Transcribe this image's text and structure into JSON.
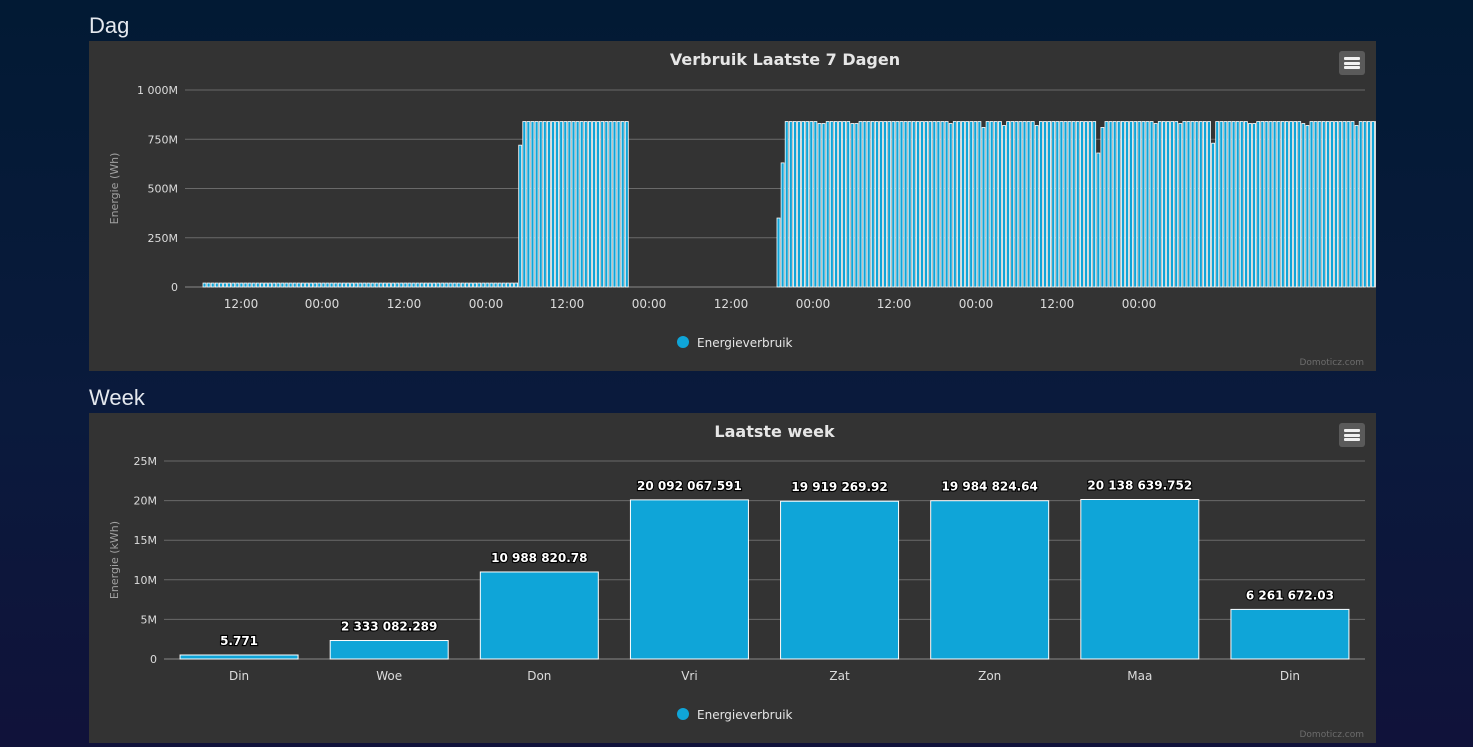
{
  "sections": {
    "day_title": "Dag",
    "week_title": "Week"
  },
  "credits": "Domoticz.com",
  "chart_data": [
    {
      "type": "bar",
      "title": "Verbruik Laatste 7 Dagen",
      "ylabel": "Energie (Wh)",
      "y_ticks": [
        "0",
        "250M",
        "500M",
        "750M",
        "1 000M"
      ],
      "ylim": [
        0,
        1000000000
      ],
      "x_tick_labels": [
        "12:00",
        "00:00",
        "12:00",
        "00:00",
        "12:00",
        "00:00",
        "12:00",
        "00:00",
        "12:00",
        "00:00",
        "12:00",
        "00:00"
      ],
      "x_unit": "hours",
      "series": [
        {
          "name": "Energieverbruik",
          "color": "#0fa5d8",
          "values": [
            20000000,
            20000000,
            20000000,
            20000000,
            20000000,
            20000000,
            20000000,
            20000000,
            20000000,
            20000000,
            20000000,
            20000000,
            20000000,
            20000000,
            20000000,
            20000000,
            20000000,
            20000000,
            20000000,
            20000000,
            20000000,
            20000000,
            20000000,
            20000000,
            20000000,
            20000000,
            20000000,
            20000000,
            20000000,
            20000000,
            20000000,
            20000000,
            20000000,
            20000000,
            20000000,
            20000000,
            20000000,
            20000000,
            20000000,
            20000000,
            20000000,
            20000000,
            20000000,
            20000000,
            20000000,
            20000000,
            20000000,
            20000000,
            20000000,
            20000000,
            20000000,
            20000000,
            20000000,
            20000000,
            20000000,
            20000000,
            20000000,
            20000000,
            20000000,
            20000000,
            20000000,
            20000000,
            20000000,
            20000000,
            20000000,
            20000000,
            20000000,
            20000000,
            20000000,
            20000000,
            20000000,
            20000000,
            20000000,
            20000000,
            20000000,
            20000000,
            20000000,
            720000000,
            840000000,
            840000000,
            840000000,
            840000000,
            840000000,
            840000000,
            840000000,
            840000000,
            840000000,
            840000000,
            840000000,
            840000000,
            840000000,
            840000000,
            840000000,
            840000000,
            840000000,
            840000000,
            840000000,
            840000000,
            840000000,
            840000000,
            840000000,
            840000000,
            840000000,
            840000000,
            null,
            null,
            null,
            null,
            null,
            null,
            null,
            null,
            null,
            null,
            null,
            null,
            null,
            null,
            null,
            null,
            null,
            null,
            null,
            null,
            null,
            null,
            null,
            null,
            null,
            null,
            null,
            null,
            null,
            null,
            null,
            null,
            null,
            null,
            null,
            null,
            350000000,
            630000000,
            840000000,
            840000000,
            840000000,
            840000000,
            840000000,
            840000000,
            840000000,
            840000000,
            830000000,
            830000000,
            840000000,
            840000000,
            840000000,
            840000000,
            840000000,
            840000000,
            830000000,
            830000000,
            840000000,
            840000000,
            840000000,
            840000000,
            840000000,
            840000000,
            840000000,
            840000000,
            840000000,
            840000000,
            840000000,
            840000000,
            840000000,
            840000000,
            840000000,
            840000000,
            840000000,
            840000000,
            840000000,
            840000000,
            840000000,
            840000000,
            830000000,
            840000000,
            840000000,
            840000000,
            840000000,
            840000000,
            840000000,
            840000000,
            810000000,
            840000000,
            840000000,
            840000000,
            840000000,
            820000000,
            840000000,
            840000000,
            840000000,
            840000000,
            840000000,
            840000000,
            840000000,
            820000000,
            840000000,
            840000000,
            840000000,
            840000000,
            840000000,
            840000000,
            840000000,
            840000000,
            840000000,
            840000000,
            840000000,
            840000000,
            840000000,
            840000000,
            680000000,
            810000000,
            840000000,
            840000000,
            840000000,
            840000000,
            840000000,
            840000000,
            840000000,
            840000000,
            840000000,
            840000000,
            840000000,
            840000000,
            830000000,
            840000000,
            840000000,
            840000000,
            840000000,
            840000000,
            830000000,
            840000000,
            840000000,
            840000000,
            840000000,
            840000000,
            840000000,
            840000000,
            730000000,
            840000000,
            840000000,
            840000000,
            840000000,
            840000000,
            840000000,
            840000000,
            840000000,
            830000000,
            830000000,
            840000000,
            840000000,
            840000000,
            840000000,
            840000000,
            840000000,
            840000000,
            840000000,
            840000000,
            840000000,
            840000000,
            830000000,
            820000000,
            840000000,
            840000000,
            840000000,
            840000000,
            840000000,
            840000000,
            840000000,
            840000000,
            840000000,
            840000000,
            840000000,
            820000000,
            840000000,
            840000000,
            840000000,
            840000000,
            840000000,
            840000000,
            840000000,
            840000000,
            840000000,
            840000000,
            840000000,
            840000000,
            840000000,
            840000000,
            840000000,
            840000000,
            840000000,
            840000000,
            840000000,
            840000000,
            840000000,
            840000000,
            840000000,
            840000000,
            840000000,
            840000000,
            840000000,
            840000000,
            840000000,
            840000000,
            840000000,
            840000000,
            840000000,
            840000000,
            840000000,
            840000000,
            840000000,
            830000000,
            840000000,
            840000000,
            350000000
          ]
        }
      ],
      "legend": "bottom-center",
      "grid": true
    },
    {
      "type": "bar",
      "title": "Laatste week",
      "ylabel": "Energie (kWh)",
      "y_ticks": [
        "0",
        "5M",
        "10M",
        "15M",
        "20M",
        "25M"
      ],
      "ylim": [
        0,
        25000000
      ],
      "categories": [
        "Din",
        "Woe",
        "Don",
        "Vri",
        "Zat",
        "Zon",
        "Maa",
        "Din"
      ],
      "series": [
        {
          "name": "Energieverbruik",
          "color": "#0fa5d8",
          "values": [
            5.771,
            2333082.289,
            10988820.78,
            20092067.591,
            19919269.92,
            19984824.64,
            20138639.752,
            6261672.03
          ],
          "labels": [
            "5.771",
            "2 333 082.289",
            "10 988 820.78",
            "20 092 067.591",
            "19 919 269.92",
            "19 984 824.64",
            "20 138 639.752",
            "6 261 672.03"
          ]
        }
      ],
      "legend": "bottom-center",
      "grid": true
    }
  ]
}
